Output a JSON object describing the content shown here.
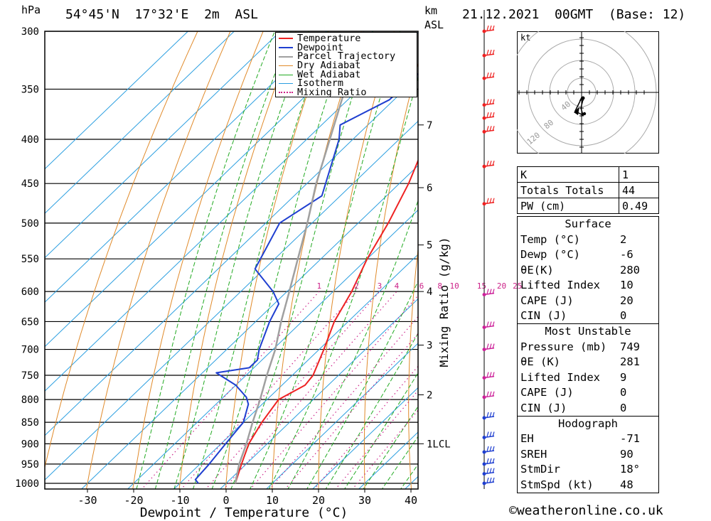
{
  "header": {
    "pressure_unit": "hPa",
    "location": "54°45'N  17°32'E  2m  ASL",
    "height_unit_top": "km",
    "height_unit_bottom": "ASL",
    "datetime": "21.12.2021  00GMT  (Base: 12)"
  },
  "legend": {
    "items": [
      {
        "label": "Temperature",
        "color": "#ee2222",
        "style": "solid"
      },
      {
        "label": "Dewpoint",
        "color": "#1f3fd0",
        "style": "solid"
      },
      {
        "label": "Parcel Trajectory",
        "color": "#a0a0a0",
        "style": "solid"
      },
      {
        "label": "Dry Adiabat",
        "color": "#e08a2a",
        "style": "solid"
      },
      {
        "label": "Wet Adiabat",
        "color": "#22aa22",
        "style": "solid"
      },
      {
        "label": "Isotherm",
        "color": "#2a9ee0",
        "style": "solid"
      },
      {
        "label": "Mixing Ratio",
        "color": "#cc2288",
        "style": "dotted"
      }
    ]
  },
  "chart_data": {
    "type": "line",
    "chart_kind": "Skew-T log-P sounding",
    "xlabel": "Dewpoint / Temperature (°C)",
    "ylabel_left": "hPa",
    "ylabel_right": "Mixing Ratio (g/kg)",
    "x_ticks": [
      -30,
      -20,
      -10,
      0,
      10,
      20,
      30,
      40
    ],
    "pressure_levels": [
      300,
      350,
      400,
      450,
      500,
      550,
      600,
      650,
      700,
      750,
      800,
      850,
      900,
      950,
      1000
    ],
    "height_ticks_km": [
      {
        "label": "7",
        "p": 385
      },
      {
        "label": "6",
        "p": 455
      },
      {
        "label": "5",
        "p": 530
      },
      {
        "label": "4",
        "p": 600
      },
      {
        "label": "3",
        "p": 692
      },
      {
        "label": "2",
        "p": 790
      },
      {
        "label": "1LCL",
        "p": 900
      }
    ],
    "mixing_ratio_labels": [
      "1",
      "2",
      "3",
      "4",
      "6",
      "8",
      "10",
      "15",
      "20",
      "25"
    ],
    "series": [
      {
        "name": "Temperature",
        "color": "#ee2222",
        "points": [
          [
            1000,
            2
          ],
          [
            950,
            -1
          ],
          [
            900,
            -4
          ],
          [
            850,
            -6
          ],
          [
            800,
            -7.5
          ],
          [
            770,
            -5
          ],
          [
            750,
            -5.5
          ],
          [
            700,
            -9
          ],
          [
            650,
            -13
          ],
          [
            600,
            -16
          ],
          [
            550,
            -20
          ],
          [
            500,
            -23.5
          ],
          [
            450,
            -28
          ],
          [
            400,
            -34
          ],
          [
            380,
            -36
          ],
          [
            360,
            -37
          ],
          [
            300,
            -45
          ]
        ]
      },
      {
        "name": "Dewpoint",
        "color": "#1f3fd0",
        "points": [
          [
            1000,
            -6
          ],
          [
            990,
            -7.5
          ],
          [
            950,
            -8
          ],
          [
            900,
            -9
          ],
          [
            850,
            -10
          ],
          [
            810,
            -13
          ],
          [
            795,
            -15
          ],
          [
            770,
            -20
          ],
          [
            745,
            -27
          ],
          [
            735,
            -21
          ],
          [
            720,
            -21
          ],
          [
            700,
            -23
          ],
          [
            650,
            -27
          ],
          [
            620,
            -29
          ],
          [
            600,
            -33
          ],
          [
            565,
            -42
          ],
          [
            500,
            -47
          ],
          [
            465,
            -44
          ],
          [
            400,
            -53
          ],
          [
            385,
            -56
          ],
          [
            360,
            -51
          ],
          [
            300,
            -50
          ]
        ]
      },
      {
        "name": "Parcel Trajectory",
        "color": "#a0a0a0",
        "points": [
          [
            1000,
            2
          ],
          [
            950,
            -1.5
          ],
          [
            900,
            -4.5
          ],
          [
            850,
            -8
          ],
          [
            800,
            -11.5
          ],
          [
            750,
            -15.5
          ],
          [
            700,
            -19.5
          ],
          [
            650,
            -24.5
          ],
          [
            600,
            -29.5
          ],
          [
            550,
            -35
          ],
          [
            500,
            -41
          ],
          [
            450,
            -48
          ],
          [
            400,
            -55
          ],
          [
            350,
            -63
          ],
          [
            300,
            -72
          ]
        ]
      }
    ],
    "wind_barbs": [
      300,
      320,
      340,
      365,
      378,
      392,
      430,
      475,
      605,
      660,
      700,
      755,
      795,
      840,
      885,
      920,
      950,
      975,
      1000
    ]
  },
  "hodograph": {
    "unit": "kt",
    "ring_labels": [
      "40",
      "80",
      "120"
    ]
  },
  "indices": [
    {
      "k": "K",
      "v": "1"
    },
    {
      "k": "Totals Totals",
      "v": "44"
    },
    {
      "k": "PW (cm)",
      "v": "0.49"
    }
  ],
  "surface": {
    "title": "Surface",
    "rows": [
      {
        "k": "Temp (°C)",
        "v": "2"
      },
      {
        "k": "Dewp (°C)",
        "v": "-6"
      },
      {
        "k": "θE(K)",
        "v": "280"
      },
      {
        "k": "Lifted Index",
        "v": "10"
      },
      {
        "k": "CAPE (J)",
        "v": "20"
      },
      {
        "k": "CIN (J)",
        "v": "0"
      }
    ]
  },
  "most_unstable": {
    "title": "Most Unstable",
    "rows": [
      {
        "k": "Pressure (mb)",
        "v": "749"
      },
      {
        "k": "θE (K)",
        "v": "281"
      },
      {
        "k": "Lifted Index",
        "v": "9"
      },
      {
        "k": "CAPE (J)",
        "v": "0"
      },
      {
        "k": "CIN (J)",
        "v": "0"
      }
    ]
  },
  "hodograph_table": {
    "title": "Hodograph",
    "rows": [
      {
        "k": "EH",
        "v": "-71"
      },
      {
        "k": "SREH",
        "v": "90"
      },
      {
        "k": "StmDir",
        "v": "18°"
      },
      {
        "k": "StmSpd (kt)",
        "v": "48"
      }
    ]
  },
  "footer": {
    "copyright": "©weatheronline.co.uk"
  }
}
